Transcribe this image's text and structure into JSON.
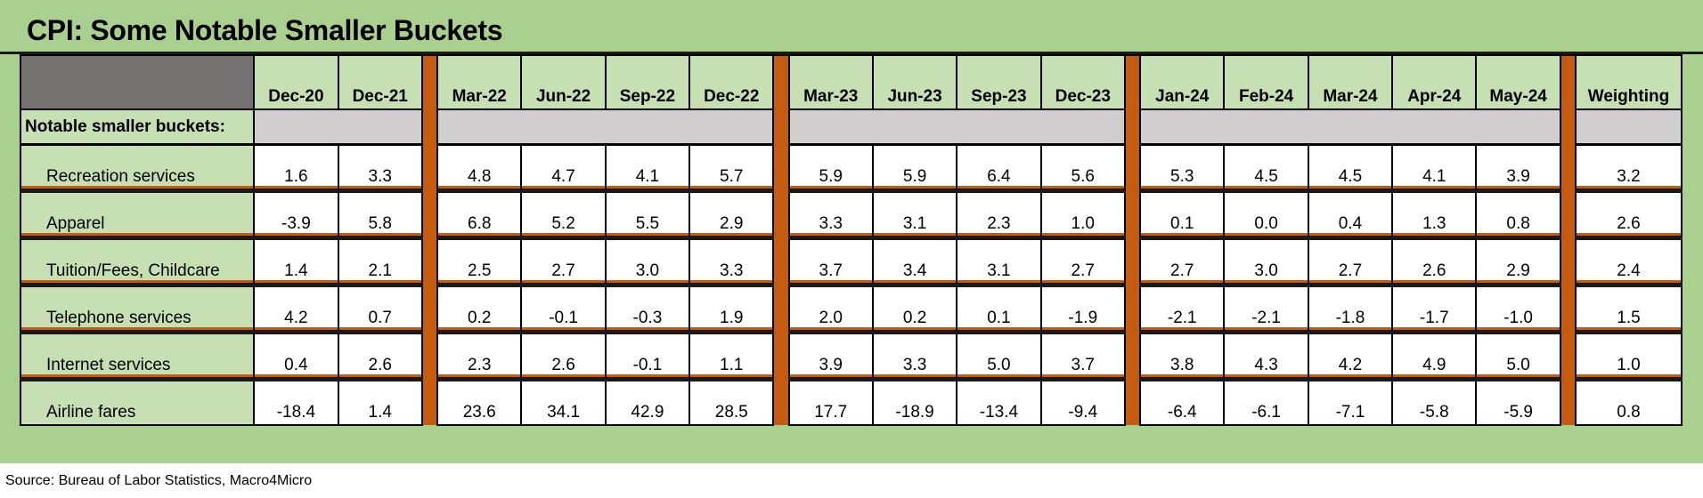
{
  "chart_data": {
    "type": "table",
    "title": "CPI: Some Notable Smaller Buckets",
    "columns": [
      "Dec-20",
      "Dec-21",
      "Mar-22",
      "Jun-22",
      "Sep-22",
      "Dec-22",
      "Mar-23",
      "Jun-23",
      "Sep-23",
      "Dec-23",
      "Jan-24",
      "Feb-24",
      "Mar-24",
      "Apr-24",
      "May-24",
      "Weighting"
    ],
    "section_label": "Notable smaller buckets:",
    "rows": [
      {
        "label": "Recreation services",
        "values": [
          "1.6",
          "3.3",
          "4.8",
          "4.7",
          "4.1",
          "5.7",
          "5.9",
          "5.9",
          "6.4",
          "5.6",
          "5.3",
          "4.5",
          "4.5",
          "4.1",
          "3.9",
          "3.2"
        ]
      },
      {
        "label": "Apparel",
        "values": [
          "-3.9",
          "5.8",
          "6.8",
          "5.2",
          "5.5",
          "2.9",
          "3.3",
          "3.1",
          "2.3",
          "1.0",
          "0.1",
          "0.0",
          "0.4",
          "1.3",
          "0.8",
          "2.6"
        ]
      },
      {
        "label": "Tuition/Fees, Childcare",
        "values": [
          "1.4",
          "2.1",
          "2.5",
          "2.7",
          "3.0",
          "3.3",
          "3.7",
          "3.4",
          "3.1",
          "2.7",
          "2.7",
          "3.0",
          "2.7",
          "2.6",
          "2.9",
          "2.4"
        ]
      },
      {
        "label": "Telephone services",
        "values": [
          "4.2",
          "0.7",
          "0.2",
          "-0.1",
          "-0.3",
          "1.9",
          "2.0",
          "0.2",
          "0.1",
          "-1.9",
          "-2.1",
          "-2.1",
          "-1.8",
          "-1.7",
          "-1.0",
          "1.5"
        ]
      },
      {
        "label": "Internet services",
        "values": [
          "0.4",
          "2.6",
          "2.3",
          "2.6",
          "-0.1",
          "1.1",
          "3.9",
          "3.3",
          "5.0",
          "3.7",
          "3.8",
          "4.3",
          "4.2",
          "4.9",
          "5.0",
          "1.0"
        ]
      },
      {
        "label": "Airline fares",
        "values": [
          "-18.4",
          "1.4",
          "23.6",
          "34.1",
          "42.9",
          "28.5",
          "17.7",
          "-18.9",
          "-13.4",
          "-9.4",
          "-6.4",
          "-6.1",
          "-7.1",
          "-5.8",
          "-5.9",
          "0.8"
        ]
      }
    ]
  },
  "source": "Source: Bureau of Labor Statistics, Macro4Micro",
  "colors": {
    "panel_bg": "#a9d08e",
    "label_cell": "#c6e0b4",
    "section_gray": "#d0cece",
    "corner": "#767171",
    "separator": "#c55a11"
  }
}
